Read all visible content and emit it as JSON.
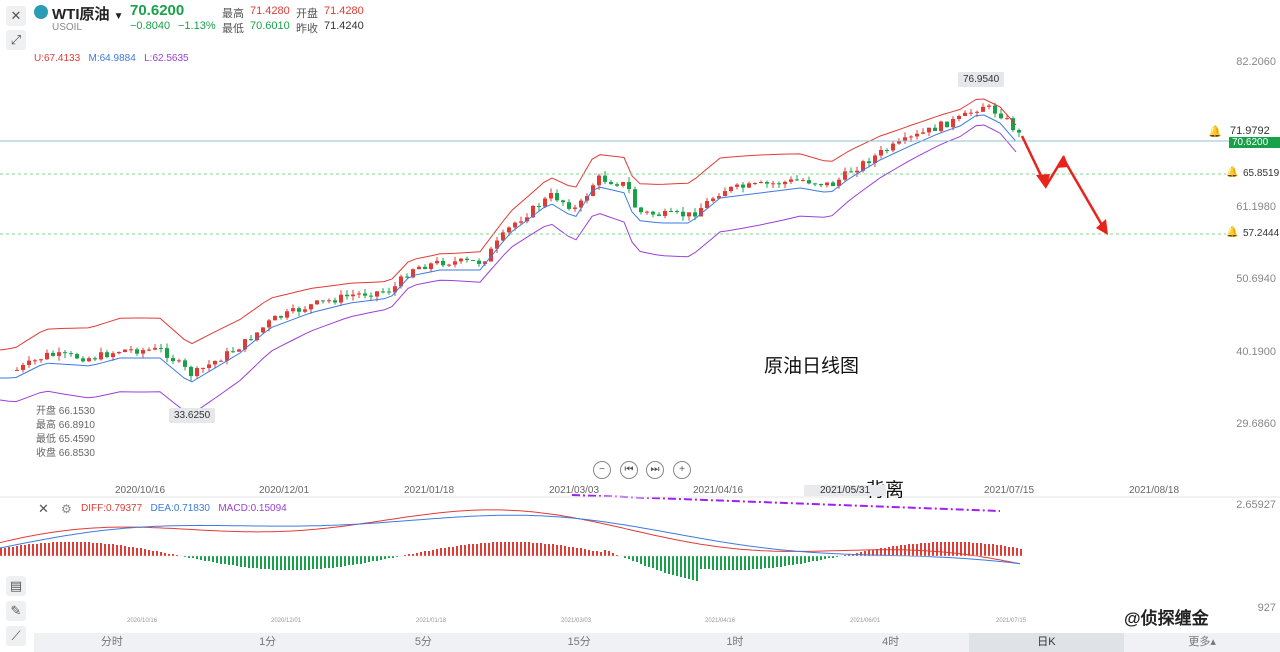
{
  "header": {
    "symbol_name": "WTI原油",
    "symbol_code": "USOIL",
    "last_price": "70.6200",
    "change": "−0.8040",
    "change_pct": "−1.13%",
    "high_label": "最高",
    "high_value": "71.4280",
    "open_label": "开盘",
    "open_value": "71.4280",
    "low_label": "最低",
    "low_value": "70.6010",
    "prev_close_label": "昨收",
    "prev_close_value": "71.4240"
  },
  "boll": {
    "upper": "U:67.4133",
    "middle": "M:64.9884",
    "lower": "L:62.5635"
  },
  "ohlc_panel": {
    "open": "开盘 66.1530",
    "high": "最高 66.8910",
    "low": "最低 65.4590",
    "close": "收盘 66.8530"
  },
  "price_axis": [
    "82.2060",
    "61.1980",
    "50.6940",
    "40.1900",
    "29.6860"
  ],
  "price_lines": {
    "last": "70.6200",
    "alert1": "71.9792",
    "alert2": "65.8519",
    "alert3": "57.2444"
  },
  "annotations": {
    "high_tag": "76.9540",
    "low_tag": "33.6250",
    "chart_title": "原油日线图",
    "divergence": "背离"
  },
  "dates": [
    "2020/10/16",
    "2020/12/01",
    "2021/01/18",
    "2021/03/03",
    "2021/04/16",
    "2021/05/31",
    "2021/07/15",
    "2021/08/18"
  ],
  "macd_dates": [
    "2020/10/16",
    "2020/12/01",
    "2021/01/18",
    "2021/03/03",
    "2021/04/16",
    "2021/06/01",
    "2021/07/15"
  ],
  "macd": {
    "diff": "DIFF:0.79377",
    "dea": "DEA:0.71830",
    "macd": "MACD:0.15094",
    "axis_top": "2.65927",
    "axis_bottom": "927"
  },
  "controls": {
    "zoom_out": "−",
    "prev": "⏮",
    "next": "⏭",
    "zoom_in": "+"
  },
  "tabs": [
    "分时",
    "1分",
    "5分",
    "15分",
    "1时",
    "4时",
    "日K",
    "更多▴"
  ],
  "active_tab": "日K",
  "watermark": "@侦探缠金",
  "icons": [
    "close-icon",
    "expand-icon",
    "settings-icon",
    "drawing-icon",
    "bell-icon",
    "indicator-icon"
  ],
  "colors": {
    "up": "#e03b35",
    "down": "#19a14a",
    "upper_band": "#e03b35",
    "middle_band": "#3b7be0",
    "lower_band": "#9b3fd6"
  }
}
